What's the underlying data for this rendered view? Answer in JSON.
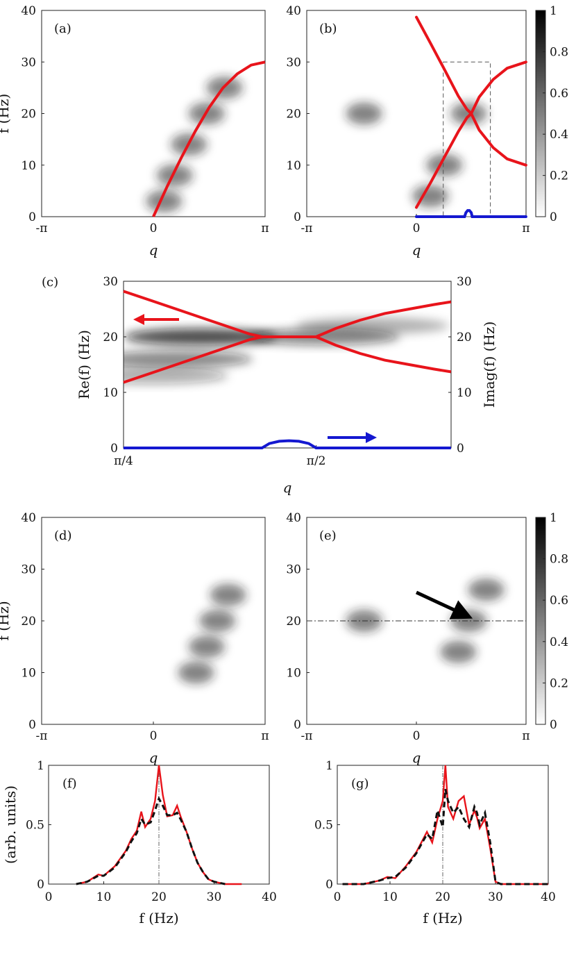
{
  "chart_data": [
    {
      "panel": "(a)",
      "type": "heatmap",
      "xlabel": "q",
      "ylabel": "f (Hz)",
      "x_ticks": [
        "-π",
        "0",
        "π"
      ],
      "y_ticks": [
        "0",
        "10",
        "20",
        "30",
        "40"
      ],
      "xlim": [
        -3.1416,
        3.1416
      ],
      "ylim": [
        0,
        40
      ],
      "curves": [
        {
          "color": "#e8141b",
          "x": [
            0,
            0.39,
            0.79,
            1.18,
            1.57,
            1.96,
            2.36,
            2.75,
            3.14
          ],
          "y": [
            0,
            5.9,
            11.5,
            16.6,
            21.2,
            25.0,
            27.7,
            29.4,
            30.0
          ]
        }
      ],
      "hotspots": [
        {
          "x": 0.3,
          "y": 3
        },
        {
          "x": 0.6,
          "y": 8
        },
        {
          "x": 1.0,
          "y": 14
        },
        {
          "x": 1.5,
          "y": 20
        },
        {
          "x": 2.0,
          "y": 25
        }
      ]
    },
    {
      "panel": "(b)",
      "type": "heatmap",
      "xlabel": "q",
      "ylabel": "",
      "x_ticks": [
        "-π",
        "0",
        "π"
      ],
      "y_ticks": [
        "0",
        "10",
        "20",
        "30",
        "40"
      ],
      "xlim": [
        -3.1416,
        3.1416
      ],
      "ylim": [
        0,
        40
      ],
      "colorbar": {
        "ticks": [
          "0",
          "0.2",
          "0.4",
          "0.6",
          "0.8",
          "1"
        ],
        "range": [
          0,
          1
        ]
      },
      "curves": [
        {
          "color": "#e8141b",
          "x": [
            0,
            0.4,
            0.8,
            1.2,
            1.45,
            1.57
          ],
          "y": [
            1.8,
            6.5,
            11.5,
            16.5,
            19.2,
            20
          ]
        },
        {
          "color": "#e8141b",
          "x": [
            0,
            0.4,
            0.8,
            1.2,
            1.45,
            1.57
          ],
          "y": [
            38.7,
            33.7,
            28.6,
            23.4,
            20.8,
            20
          ]
        },
        {
          "color": "#e8141b",
          "x": [
            1.57,
            1.8,
            2.2,
            2.6,
            3.14
          ],
          "y": [
            20,
            23.2,
            26.6,
            28.8,
            30
          ]
        },
        {
          "color": "#e8141b",
          "x": [
            1.57,
            1.8,
            2.2,
            2.6,
            3.14
          ],
          "y": [
            20,
            16.8,
            13.4,
            11.2,
            10
          ]
        },
        {
          "color": "#1418d0",
          "x": [
            0,
            1.38,
            1.42,
            1.47,
            1.52,
            1.57,
            1.6,
            3.14
          ],
          "y": [
            0,
            0,
            0.8,
            1.2,
            1.2,
            0.8,
            0,
            0
          ]
        }
      ],
      "dashed_box": {
        "x": [
          0.77,
          2.12
        ],
        "y": [
          0,
          30
        ]
      },
      "hotspots": [
        {
          "x": 1.5,
          "y": 20
        },
        {
          "x": -1.5,
          "y": 20
        },
        {
          "x": 0.4,
          "y": 4
        },
        {
          "x": 0.8,
          "y": 10
        }
      ]
    },
    {
      "panel": "(c)",
      "type": "line",
      "xlabel": "q",
      "ylabel": "Re(f) (Hz)",
      "ylabel_right": "Imag(f) (Hz)",
      "x_ticks": [
        "π/4",
        "π/2"
      ],
      "y_ticks": [
        "0",
        "10",
        "20",
        "30"
      ],
      "xlim": [
        0.7854,
        2.1206
      ],
      "ylim": [
        0,
        30
      ],
      "curves": [
        {
          "color": "#e8141b",
          "x": [
            0.785,
            0.9,
            1.0,
            1.1,
            1.2,
            1.3,
            1.35
          ],
          "y": [
            28.2,
            26.5,
            25.0,
            23.5,
            22.0,
            20.5,
            20
          ]
        },
        {
          "color": "#e8141b",
          "x": [
            0.785,
            0.9,
            1.0,
            1.1,
            1.2,
            1.3,
            1.35
          ],
          "y": [
            11.8,
            13.5,
            15.0,
            16.5,
            18.0,
            19.5,
            20
          ]
        },
        {
          "color": "#e8141b",
          "x": [
            1.35,
            1.57
          ],
          "y": [
            20,
            20
          ]
        },
        {
          "color": "#e8141b",
          "x": [
            1.57,
            1.65,
            1.75,
            1.85,
            1.95,
            2.05,
            2.12
          ],
          "y": [
            20,
            21.5,
            23.0,
            24.2,
            25.0,
            25.8,
            26.3
          ]
        },
        {
          "color": "#e8141b",
          "x": [
            1.57,
            1.65,
            1.75,
            1.85,
            1.95,
            2.05,
            2.12
          ],
          "y": [
            20,
            18.5,
            17.0,
            15.8,
            15.0,
            14.2,
            13.7
          ]
        },
        {
          "color": "#1418d0",
          "x": [
            0.785,
            1.35,
            1.38,
            1.42,
            1.46,
            1.5,
            1.54,
            1.57,
            2.12
          ],
          "y": [
            0,
            0,
            0.8,
            1.2,
            1.3,
            1.2,
            0.8,
            0,
            0
          ]
        }
      ],
      "arrows": [
        {
          "color": "#e8141b",
          "direction": "left",
          "meaning": "left axis"
        },
        {
          "color": "#1418d0",
          "direction": "right",
          "meaning": "right axis"
        }
      ]
    },
    {
      "panel": "(d)",
      "type": "heatmap",
      "xlabel": "q",
      "ylabel": "f (Hz)",
      "x_ticks": [
        "-π",
        "0",
        "π"
      ],
      "y_ticks": [
        "0",
        "10",
        "20",
        "30",
        "40"
      ],
      "xlim": [
        -3.1416,
        3.1416
      ],
      "ylim": [
        0,
        40
      ],
      "hotspots": [
        {
          "x": 1.2,
          "y": 10
        },
        {
          "x": 1.5,
          "y": 15
        },
        {
          "x": 1.8,
          "y": 20
        },
        {
          "x": 2.1,
          "y": 25
        }
      ]
    },
    {
      "panel": "(e)",
      "type": "heatmap",
      "xlabel": "q",
      "ylabel": "",
      "x_ticks": [
        "-π",
        "0",
        "π"
      ],
      "y_ticks": [
        "0",
        "10",
        "20",
        "30",
        "40"
      ],
      "xlim": [
        -3.1416,
        3.1416
      ],
      "ylim": [
        0,
        40
      ],
      "colorbar": {
        "ticks": [
          "0",
          "0.2",
          "0.4",
          "0.6",
          "0.8",
          "1"
        ],
        "range": [
          0,
          1
        ]
      },
      "hline": {
        "y": 20,
        "style": "dash-dot"
      },
      "annotation_arrow": {
        "to": {
          "x": 1.5,
          "y": 20.5
        },
        "from": {
          "x": 0,
          "y": 25.5
        }
      },
      "hotspots": [
        {
          "x": 1.5,
          "y": 20
        },
        {
          "x": 1.2,
          "y": 14
        },
        {
          "x": 2.0,
          "y": 26
        },
        {
          "x": -1.5,
          "y": 20
        }
      ]
    },
    {
      "panel": "(f)",
      "type": "line",
      "xlabel": "f (Hz)",
      "ylabel": "(arb. units)",
      "x_ticks": [
        "0",
        "10",
        "20",
        "30",
        "40"
      ],
      "y_ticks": [
        "0",
        "0.5",
        "1"
      ],
      "xlim": [
        0,
        40
      ],
      "ylim": [
        0,
        1
      ],
      "vline": {
        "x": 20
      },
      "series": [
        {
          "style": "solid",
          "color": "#e8141b",
          "x": [
            5,
            7,
            9,
            10,
            12,
            14,
            15,
            16,
            16.8,
            17.5,
            18.5,
            19.3,
            20,
            20.7,
            21.5,
            22.5,
            23.3,
            24,
            25,
            26,
            27,
            28,
            29,
            30,
            32,
            35
          ],
          "y": [
            0,
            0.02,
            0.08,
            0.07,
            0.15,
            0.28,
            0.38,
            0.45,
            0.61,
            0.48,
            0.55,
            0.7,
            1.0,
            0.75,
            0.57,
            0.58,
            0.66,
            0.56,
            0.44,
            0.3,
            0.18,
            0.1,
            0.04,
            0.02,
            0,
            0
          ]
        },
        {
          "style": "dashed",
          "color": "#111111",
          "x": [
            5,
            7,
            9,
            10,
            12,
            14,
            15,
            16,
            16.8,
            17.5,
            18.5,
            19.3,
            20,
            20.7,
            21.5,
            22.5,
            23.3,
            24,
            25,
            26,
            27,
            28,
            29,
            30,
            32
          ],
          "y": [
            0,
            0.02,
            0.07,
            0.07,
            0.14,
            0.27,
            0.36,
            0.43,
            0.55,
            0.5,
            0.52,
            0.62,
            0.72,
            0.66,
            0.58,
            0.58,
            0.6,
            0.54,
            0.44,
            0.3,
            0.18,
            0.1,
            0.04,
            0.02,
            0
          ]
        }
      ]
    },
    {
      "panel": "(g)",
      "type": "line",
      "xlabel": "f (Hz)",
      "ylabel": "",
      "x_ticks": [
        "0",
        "10",
        "20",
        "30",
        "40"
      ],
      "y_ticks": [
        "0",
        "0.5",
        "1"
      ],
      "xlim": [
        0,
        40
      ],
      "ylim": [
        0,
        1
      ],
      "vline": {
        "x": 20
      },
      "series": [
        {
          "style": "solid",
          "color": "#e8141b",
          "x": [
            1,
            5,
            8,
            9.5,
            11,
            13,
            15,
            17,
            18,
            19,
            20,
            20.5,
            21,
            22,
            23,
            24,
            25,
            26,
            26.5,
            27,
            28,
            29,
            30,
            31,
            33,
            40
          ],
          "y": [
            0,
            0,
            0.03,
            0.06,
            0.05,
            0.15,
            0.27,
            0.44,
            0.35,
            0.55,
            0.7,
            1.0,
            0.65,
            0.55,
            0.7,
            0.74,
            0.5,
            0.62,
            0.56,
            0.47,
            0.55,
            0.3,
            0.02,
            0,
            0,
            0
          ]
        },
        {
          "style": "dashed",
          "color": "#111111",
          "x": [
            1,
            5,
            8,
            9.5,
            11,
            13,
            15,
            17,
            18,
            19,
            20,
            20.5,
            21,
            22,
            23,
            24,
            25,
            26,
            26.5,
            27,
            28,
            29,
            30,
            31,
            33,
            40
          ],
          "y": [
            0,
            0,
            0.03,
            0.05,
            0.06,
            0.14,
            0.26,
            0.42,
            0.38,
            0.62,
            0.48,
            0.8,
            0.7,
            0.6,
            0.65,
            0.55,
            0.48,
            0.65,
            0.6,
            0.5,
            0.6,
            0.35,
            0.02,
            0,
            0,
            0
          ]
        }
      ]
    }
  ]
}
